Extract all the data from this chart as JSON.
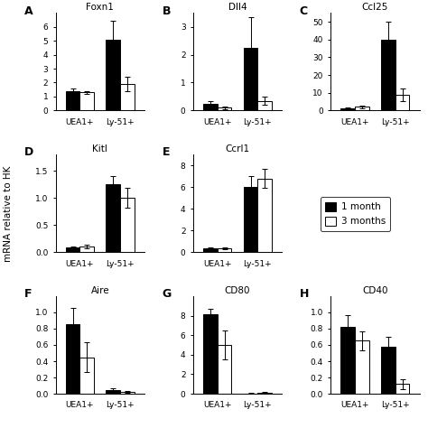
{
  "panels": [
    {
      "label": "A",
      "title": "Foxn1",
      "row": 0,
      "col": 0,
      "groups": [
        "UEA1+",
        "Ly-51+"
      ],
      "bar1": [
        1.4,
        5.1
      ],
      "bar1_err": [
        0.15,
        1.3
      ],
      "bar2": [
        1.3,
        1.9
      ],
      "bar2_err": [
        0.1,
        0.5
      ],
      "ylim": [
        0,
        7
      ],
      "yticks": [
        0,
        1,
        2,
        3,
        4,
        5,
        6
      ]
    },
    {
      "label": "B",
      "title": "Dll4",
      "row": 0,
      "col": 1,
      "groups": [
        "UEA1+",
        "Ly-51+"
      ],
      "bar1": [
        0.25,
        2.25
      ],
      "bar1_err": [
        0.08,
        1.1
      ],
      "bar2": [
        0.1,
        0.35
      ],
      "bar2_err": [
        0.05,
        0.15
      ],
      "ylim": [
        0,
        3.5
      ],
      "yticks": [
        0,
        1.0,
        2.0,
        3.0
      ]
    },
    {
      "label": "C",
      "title": "Ccl25",
      "row": 0,
      "col": 2,
      "groups": [
        "UEA1+",
        "Ly-51+"
      ],
      "bar1": [
        1.0,
        40.0
      ],
      "bar1_err": [
        0.5,
        10.0
      ],
      "bar2": [
        2.0,
        9.0
      ],
      "bar2_err": [
        0.8,
        3.5
      ],
      "ylim": [
        0,
        55
      ],
      "yticks": [
        0,
        10,
        20,
        30,
        40,
        50
      ]
    },
    {
      "label": "D",
      "title": "Kitl",
      "row": 1,
      "col": 0,
      "groups": [
        "UEA1+",
        "Ly-51+"
      ],
      "bar1": [
        0.08,
        1.25
      ],
      "bar1_err": [
        0.02,
        0.15
      ],
      "bar2": [
        0.1,
        1.0
      ],
      "bar2_err": [
        0.03,
        0.18
      ],
      "ylim": [
        0,
        1.8
      ],
      "yticks": [
        0,
        0.5,
        1.0,
        1.5
      ]
    },
    {
      "label": "E",
      "title": "Ccrl1",
      "row": 1,
      "col": 1,
      "groups": [
        "UEA1+",
        "Ly-51+"
      ],
      "bar1": [
        0.35,
        6.0
      ],
      "bar1_err": [
        0.1,
        1.0
      ],
      "bar2": [
        0.35,
        6.8
      ],
      "bar2_err": [
        0.1,
        0.9
      ],
      "ylim": [
        0,
        9
      ],
      "yticks": [
        0,
        2,
        4,
        6,
        8
      ]
    },
    {
      "label": "F",
      "title": "Aire",
      "row": 2,
      "col": 0,
      "groups": [
        "UEA1+",
        "Ly-51+"
      ],
      "bar1": [
        0.85,
        0.05
      ],
      "bar1_err": [
        0.2,
        0.02
      ],
      "bar2": [
        0.45,
        0.02
      ],
      "bar2_err": [
        0.18,
        0.01
      ],
      "ylim": [
        0,
        1.2
      ],
      "yticks": [
        0,
        0.2,
        0.4,
        0.6,
        0.8,
        1.0
      ]
    },
    {
      "label": "G",
      "title": "CD80",
      "row": 2,
      "col": 1,
      "groups": [
        "UEA1+",
        "Ly-51+"
      ],
      "bar1": [
        8.1,
        0.05
      ],
      "bar1_err": [
        0.6,
        0.03
      ],
      "bar2": [
        5.0,
        0.1
      ],
      "bar2_err": [
        1.5,
        0.05
      ],
      "ylim": [
        0,
        10
      ],
      "yticks": [
        0,
        2,
        4,
        6,
        8
      ]
    },
    {
      "label": "H",
      "title": "CD40",
      "row": 2,
      "col": 2,
      "groups": [
        "UEA1+",
        "Ly-51+"
      ],
      "bar1": [
        0.82,
        0.58
      ],
      "bar1_err": [
        0.15,
        0.12
      ],
      "bar2": [
        0.65,
        0.12
      ],
      "bar2_err": [
        0.12,
        0.06
      ],
      "ylim": [
        0,
        1.2
      ],
      "yticks": [
        0,
        0.2,
        0.4,
        0.6,
        0.8,
        1.0
      ]
    }
  ],
  "color_black": "#000000",
  "color_white": "#ffffff",
  "bar_width": 0.35,
  "ylabel": "mRNA relative to HK",
  "legend_labels": [
    "1 month",
    "3 months"
  ]
}
